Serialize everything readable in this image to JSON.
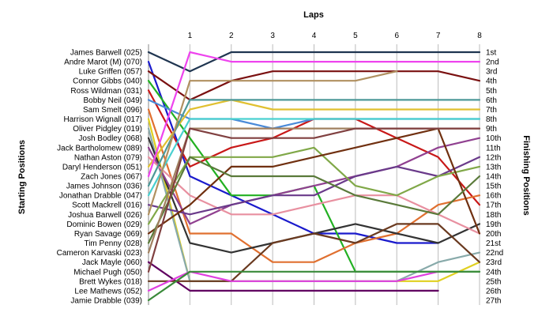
{
  "chart_data": {
    "type": "line",
    "title": "",
    "xlabel": "Laps",
    "ylabel_left": "Starting Positions",
    "ylabel_right": "Finishing Positions",
    "x": [
      0,
      1,
      2,
      3,
      4,
      5,
      6,
      7,
      8
    ],
    "x_tick_labels": [
      "1",
      "2",
      "3",
      "4",
      "5",
      "6",
      "7",
      "8"
    ],
    "y_range": [
      1,
      27
    ],
    "y_inverted": true,
    "grid": "vertical",
    "legend": "none",
    "finishing_labels": [
      "1st",
      "2nd",
      "3rd",
      "4th",
      "5th",
      "6th",
      "7th",
      "8th",
      "9th",
      "10th",
      "11th",
      "12th",
      "13th",
      "14th",
      "15th",
      "16th",
      "17th",
      "18th",
      "19th",
      "20th",
      "21st",
      "22nd",
      "23rd",
      "24th",
      "25th",
      "26th",
      "27th"
    ],
    "series": [
      {
        "name": "James Barwell (025)",
        "color": "#1f3550",
        "values": [
          1,
          3,
          1,
          1,
          1,
          1,
          1,
          1,
          1
        ]
      },
      {
        "name": "Andre Marot  (M) (070)",
        "color": "#1a1acc",
        "values": [
          2,
          14,
          16,
          18,
          20,
          20,
          21,
          21,
          null
        ]
      },
      {
        "name": "Luke Griffen (057)",
        "color": "#7a1010",
        "values": [
          3,
          6,
          4,
          3,
          3,
          3,
          3,
          3,
          4
        ]
      },
      {
        "name": "Connor Gibbs (040)",
        "color": "#22b022",
        "values": [
          4,
          10,
          16,
          16,
          15,
          24,
          24,
          24,
          24
        ]
      },
      {
        "name": "Ross Wildman (031)",
        "color": "#c81818",
        "values": [
          5,
          13,
          11,
          10,
          8,
          8,
          10,
          12,
          17
        ]
      },
      {
        "name": "Bobby Neil (049)",
        "color": "#4a8ad8",
        "values": [
          6,
          8,
          8,
          9,
          8,
          8,
          8,
          8,
          8
        ]
      },
      {
        "name": "Sam Smelt (096)",
        "color": "#e07030",
        "values": [
          7,
          20,
          20,
          23,
          23,
          21,
          20,
          17,
          16
        ]
      },
      {
        "name": "Harrison Wignall (017)",
        "color": "#e0d020",
        "values": [
          8,
          25,
          25,
          25,
          25,
          25,
          25,
          25,
          23
        ]
      },
      {
        "name": "Oliver Pidgley (019)",
        "color": "#88aaaa",
        "values": [
          9,
          25,
          25,
          25,
          25,
          25,
          25,
          23,
          22
        ]
      },
      {
        "name": "Josh Bodley (068)",
        "color": "#333333",
        "values": [
          10,
          21,
          22,
          21,
          20,
          19,
          20,
          21,
          19
        ]
      },
      {
        "name": "Jack Bartholomew (089)",
        "color": "#904090",
        "values": [
          11,
          19,
          17,
          16,
          15,
          14,
          13,
          11,
          10
        ]
      },
      {
        "name": "Nathan Aston (079)",
        "color": "#e890a0",
        "values": [
          12,
          16,
          18,
          18,
          17,
          16,
          16,
          18,
          20
        ]
      },
      {
        "name": "Daryl Henderson (051)",
        "color": "#e0c030",
        "values": [
          13,
          7,
          6,
          7,
          7,
          7,
          7,
          7,
          7
        ]
      },
      {
        "name": "Zach Jones (067)",
        "color": "#ee44ee",
        "values": [
          14,
          1,
          2,
          2,
          2,
          2,
          2,
          2,
          2
        ]
      },
      {
        "name": "James Johnson (036)",
        "color": "#4d9898",
        "values": [
          15,
          6,
          6,
          6,
          6,
          6,
          6,
          6,
          6
        ]
      },
      {
        "name": "Jonathan Drabble (047)",
        "color": "#4ad0d0",
        "values": [
          16,
          8,
          8,
          8,
          8,
          8,
          8,
          8,
          8
        ]
      },
      {
        "name": "Scott Mackrell (016)",
        "color": "#6a3a8a",
        "values": [
          17,
          18,
          17,
          16,
          16,
          14,
          13,
          14,
          12
        ]
      },
      {
        "name": "Joshua Barwell (026)",
        "color": "#b09060",
        "values": [
          18,
          4,
          4,
          4,
          4,
          4,
          3,
          null,
          null
        ]
      },
      {
        "name": "Dominic Bowen (029)",
        "color": "#80a848",
        "values": [
          19,
          12,
          12,
          12,
          11,
          15,
          16,
          14,
          13
        ]
      },
      {
        "name": "Ryan Savage (069)",
        "color": "#703010",
        "values": [
          20,
          17,
          13,
          13,
          12,
          11,
          10,
          9,
          20
        ]
      },
      {
        "name": "Tim Penny (028)",
        "color": "#5a7a3a",
        "values": [
          21,
          12,
          14,
          14,
          14,
          16,
          17,
          18,
          14
        ]
      },
      {
        "name": "Cameron Karvaski (023)",
        "color": "#a08060",
        "values": [
          22,
          9,
          9,
          9,
          9,
          9,
          9,
          9,
          9
        ]
      },
      {
        "name": "Jack Mayle (060)",
        "color": "#600060",
        "values": [
          23,
          26,
          26,
          26,
          26,
          26,
          26,
          26,
          null
        ]
      },
      {
        "name": "Michael Pugh (050)",
        "color": "#804040",
        "values": [
          24,
          9,
          10,
          10,
          10,
          9,
          9,
          9,
          9
        ]
      },
      {
        "name": "Brett Wykes (018)",
        "color": "#6a3a20",
        "values": [
          25,
          25,
          25,
          21,
          20,
          21,
          19,
          19,
          23
        ]
      },
      {
        "name": "Lee Mathews (052)",
        "color": "#e040e0",
        "values": [
          26,
          24,
          25,
          25,
          25,
          25,
          25,
          24,
          null
        ]
      },
      {
        "name": "Jamie Drabble (039)",
        "color": "#3a8a3a",
        "values": [
          27,
          24,
          24,
          24,
          24,
          24,
          24,
          24,
          24
        ]
      }
    ]
  }
}
